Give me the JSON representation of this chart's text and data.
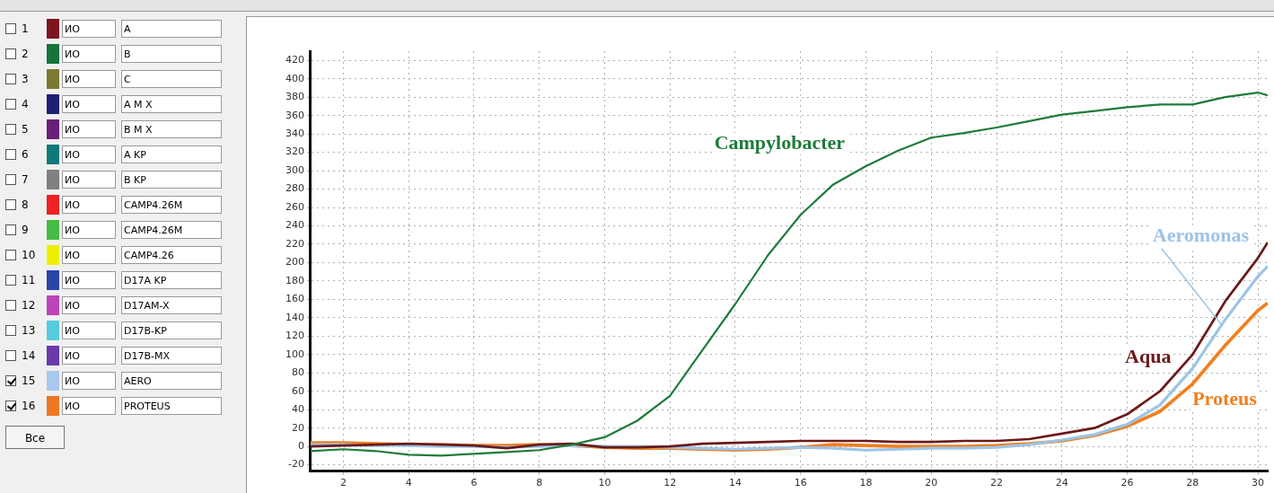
{
  "chart_data": {
    "type": "line",
    "x": [
      1,
      2,
      3,
      4,
      5,
      6,
      7,
      8,
      9,
      10,
      11,
      12,
      13,
      14,
      15,
      16,
      17,
      18,
      19,
      20,
      21,
      22,
      23,
      24,
      25,
      26,
      27,
      28,
      29,
      30,
      30.3
    ],
    "series": [
      {
        "name": "Campylobacter",
        "color": "#1e7b3a",
        "values": [
          -5,
          -3,
          -5,
          -9,
          -10,
          -8,
          -6,
          -4,
          2,
          10,
          28,
          55,
          105,
          155,
          208,
          252,
          285,
          305,
          322,
          336,
          341,
          347,
          354,
          361,
          365,
          369,
          372,
          372,
          380,
          385,
          382
        ]
      },
      {
        "name": "Aqua",
        "color": "#6b1a1a",
        "values": [
          0,
          1,
          2,
          3,
          2,
          1,
          -2,
          2,
          3,
          -1,
          -1,
          0,
          3,
          4,
          5,
          6,
          6,
          6,
          5,
          5,
          6,
          6,
          8,
          14,
          20,
          35,
          60,
          100,
          158,
          205,
          222
        ]
      },
      {
        "name": "Aeromonas",
        "color": "#9cc4e8",
        "values": [
          2,
          2,
          1,
          1,
          0,
          0,
          -1,
          0,
          1,
          0,
          0,
          -1,
          -2,
          -3,
          -2,
          -1,
          -2,
          -4,
          -3,
          -2,
          -2,
          -1,
          2,
          7,
          13,
          24,
          45,
          85,
          138,
          185,
          196
        ]
      },
      {
        "name": "Proteus",
        "color": "#f08020",
        "values": [
          4,
          4,
          3,
          2,
          2,
          1,
          1,
          2,
          1,
          -1,
          -2,
          -2,
          -3,
          -4,
          -3,
          -1,
          2,
          1,
          0,
          0,
          0,
          1,
          3,
          6,
          12,
          22,
          38,
          68,
          110,
          148,
          156
        ]
      }
    ],
    "xlim": [
      1,
      30.3
    ],
    "xticks": [
      2,
      4,
      6,
      8,
      10,
      12,
      14,
      16,
      18,
      20,
      22,
      24,
      26,
      28,
      30
    ],
    "ylim": [
      -27,
      430
    ],
    "yticks": [
      -20,
      0,
      20,
      40,
      60,
      80,
      100,
      120,
      140,
      160,
      180,
      200,
      220,
      240,
      260,
      280,
      300,
      320,
      340,
      360,
      380,
      400,
      420
    ],
    "grid": true,
    "legend": false,
    "marker": "none",
    "line_style": "solid",
    "annotations": [
      "1",
      "ИО",
      "A",
      "2",
      "ИО",
      "B",
      "3",
      "ИО",
      "C",
      "4",
      "ИО",
      "A M X",
      "5",
      "ИО",
      "B M X",
      "6",
      "ИО",
      "A KP",
      "7",
      "ИО",
      "B KP",
      "8",
      "ИО",
      "CAMP4.26M",
      "9",
      "ИО",
      "CAMP4.26M",
      "10",
      "ИО",
      "CAMP4.26",
      "11",
      "ИО",
      "D17A KP",
      "12",
      "ИО",
      "D17AM-X",
      "13",
      "ИО",
      "D17B-KP",
      "14",
      "ИО",
      "D17B-MX",
      "15",
      "ИО",
      "AERO",
      "16",
      "ИО",
      "PROTEUS",
      "Все"
    ]
  }
}
